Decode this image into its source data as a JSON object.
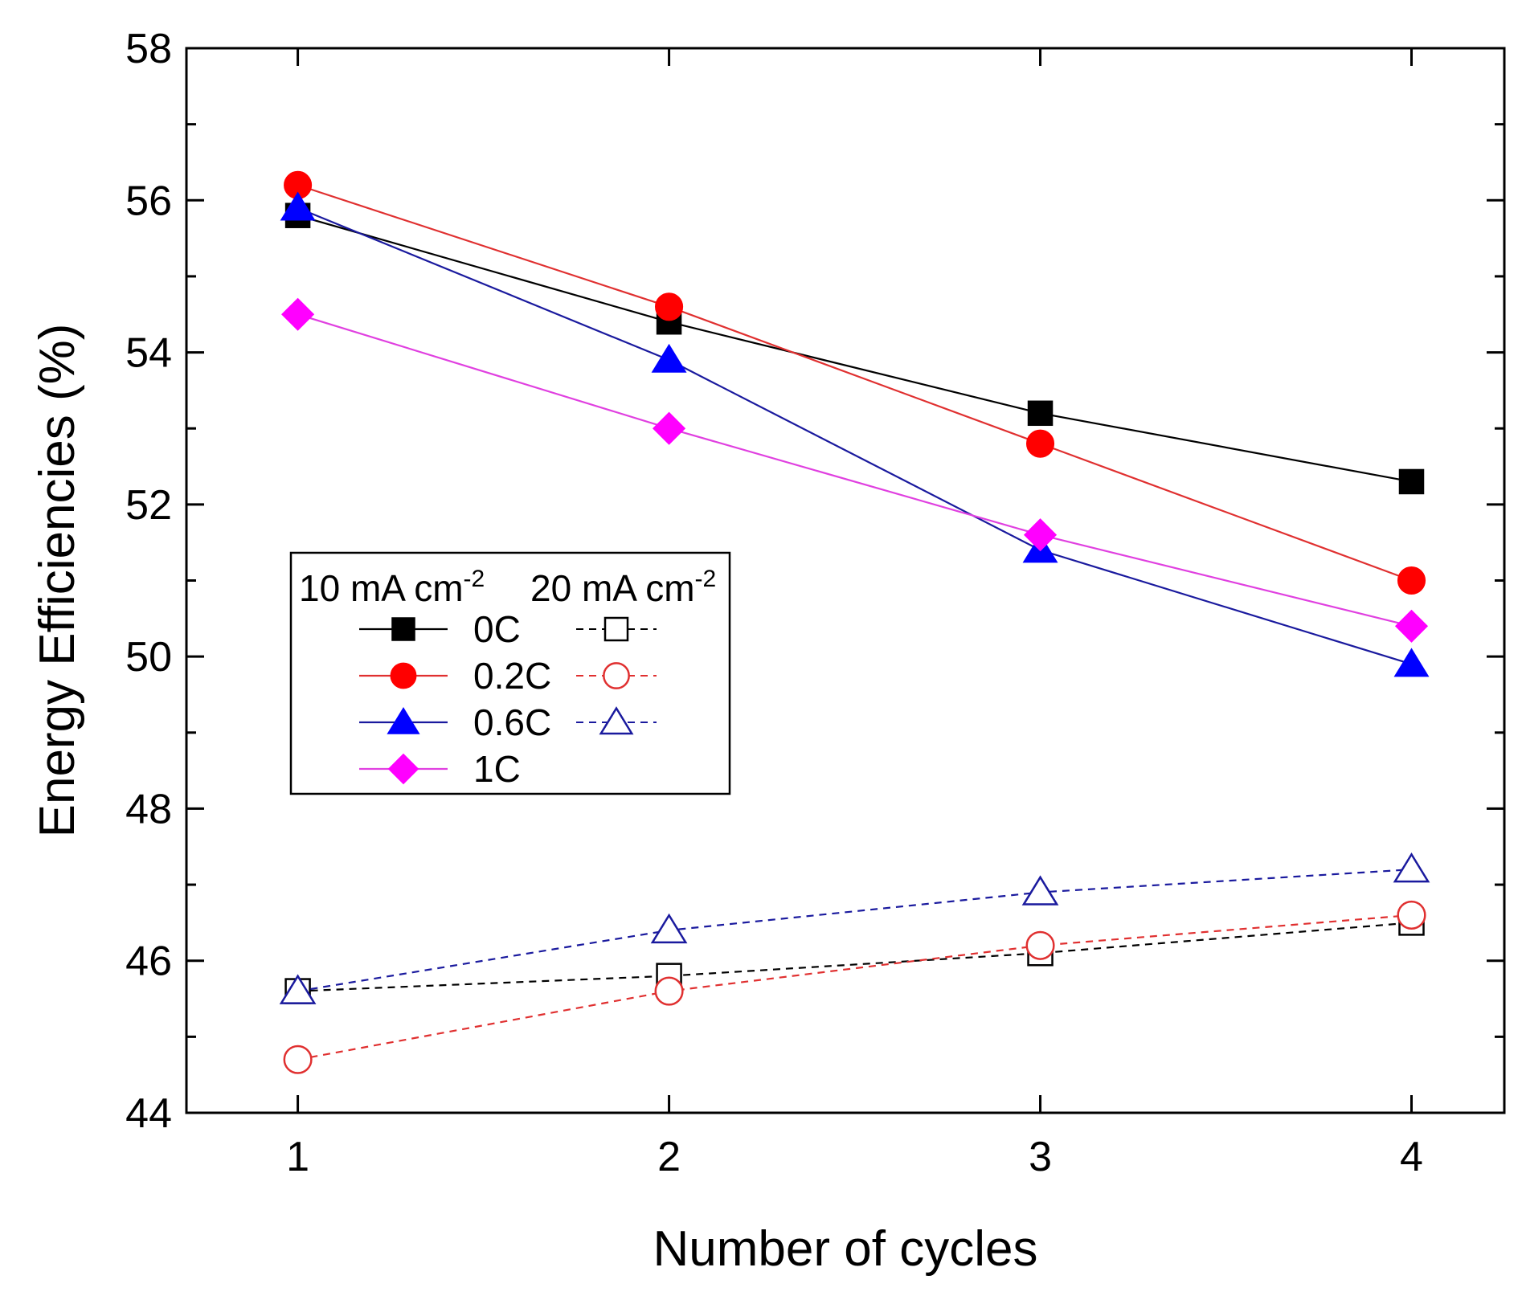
{
  "chart_data": {
    "type": "line",
    "title": "",
    "xlabel": "Number of cycles",
    "ylabel": "Energy Efficiencies (%)",
    "xlim": [
      0.7,
      4.25
    ],
    "ylim": [
      44,
      58
    ],
    "x": [
      1,
      2,
      3,
      4
    ],
    "xticks": [
      1,
      2,
      3,
      4
    ],
    "xtick_labels": [
      "1",
      "2",
      "3",
      "4"
    ],
    "yticks": [
      44,
      46,
      48,
      50,
      52,
      54,
      56,
      58
    ],
    "ytick_labels": [
      "44",
      "46",
      "48",
      "50",
      "52",
      "54",
      "56",
      "58"
    ],
    "legend": {
      "location": "center-left",
      "header_left": "10 mA cm",
      "header_left_sup": "-2",
      "header_right": "20 mA cm",
      "header_right_sup": "-2",
      "rows": [
        {
          "label": "0C",
          "color": "#000000",
          "marker": "square"
        },
        {
          "label": "0.2C",
          "color": "#ff0000",
          "marker": "circle"
        },
        {
          "label": "0.6C",
          "color": "#0000ff",
          "marker": "triangle"
        },
        {
          "label": "1C",
          "color": "#ff00ff",
          "marker": "diamond"
        }
      ]
    },
    "series": [
      {
        "name": "0C (10 mA cm-2)",
        "color": "#000000",
        "line_color": "#000000",
        "marker": "square",
        "filled": true,
        "dashed": false,
        "values": [
          55.8,
          54.4,
          53.2,
          52.3
        ]
      },
      {
        "name": "0.2C (10 mA cm-2)",
        "color": "#ff0000",
        "line_color": "#e03030",
        "marker": "circle",
        "filled": true,
        "dashed": false,
        "values": [
          56.2,
          54.6,
          52.8,
          51.0
        ]
      },
      {
        "name": "0.6C (10 mA cm-2)",
        "color": "#0000ff",
        "line_color": "#1a1a9e",
        "marker": "triangle",
        "filled": true,
        "dashed": false,
        "values": [
          55.9,
          53.9,
          51.4,
          49.9
        ]
      },
      {
        "name": "1C (10 mA cm-2)",
        "color": "#ff00ff",
        "line_color": "#e040e0",
        "marker": "diamond",
        "filled": true,
        "dashed": false,
        "values": [
          54.5,
          53.0,
          51.6,
          50.4
        ]
      },
      {
        "name": "0C (20 mA cm-2)",
        "color": "#000000",
        "line_color": "#000000",
        "marker": "square",
        "filled": false,
        "dashed": true,
        "values": [
          45.6,
          45.8,
          46.1,
          46.5
        ]
      },
      {
        "name": "0.2C (20 mA cm-2)",
        "color": "#e03030",
        "line_color": "#e03030",
        "marker": "circle",
        "filled": false,
        "dashed": true,
        "values": [
          44.7,
          45.6,
          46.2,
          46.6
        ]
      },
      {
        "name": "0.6C (20 mA cm-2)",
        "color": "#1a1a9e",
        "line_color": "#1a1a9e",
        "marker": "triangle",
        "filled": false,
        "dashed": true,
        "values": [
          45.6,
          46.4,
          46.9,
          47.2
        ]
      }
    ]
  }
}
